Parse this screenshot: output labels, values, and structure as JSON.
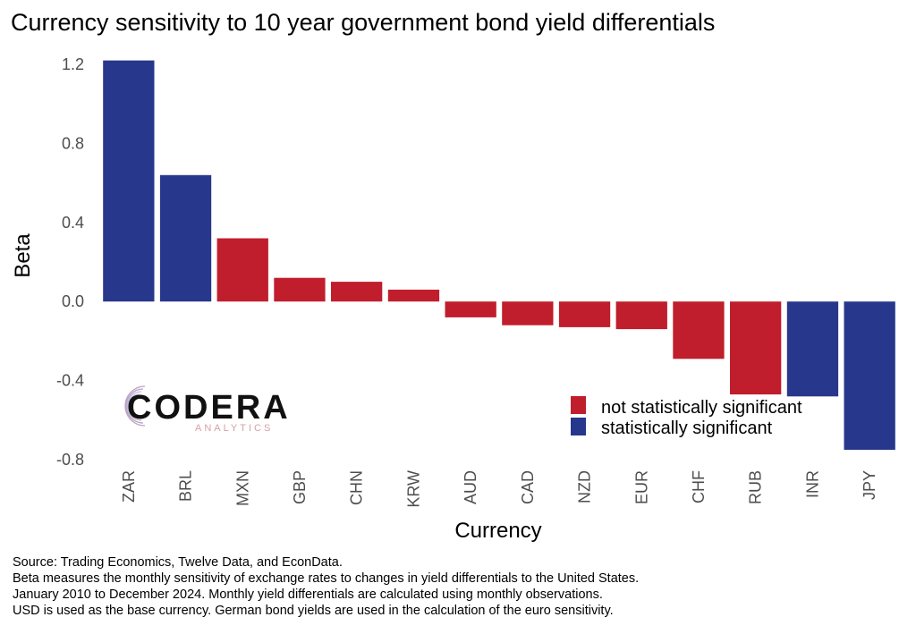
{
  "title": "Currency sensitivity to 10 year government bond yield differentials",
  "logo": {
    "word": "CODERA",
    "sub": "ANALYTICS"
  },
  "colors": {
    "significant": "#27378c",
    "not_significant": "#c01e2d",
    "tick": "#4d4d4d"
  },
  "notes": [
    "Source: Trading Economics, Twelve Data, and EconData.",
    "Beta measures the monthly sensitivity of exchange rates to changes in yield differentials to the United States.",
    "January 2010 to December 2024. Monthly yield differentials are calculated using monthly observations.",
    "USD is used as the base currency. German bond yields are used in the calculation of the euro sensitivity."
  ],
  "chart_data": {
    "type": "bar",
    "xlabel": "Currency",
    "ylabel": "Beta",
    "ylim": [
      -0.8,
      1.2
    ],
    "yticks": [
      -0.8,
      -0.4,
      0.0,
      0.4,
      0.8,
      1.2
    ],
    "ytick_labels": [
      "-0.8",
      "-0.4",
      "0.0",
      "0.4",
      "0.8",
      "1.2"
    ],
    "grid": false,
    "categories": [
      "ZAR",
      "BRL",
      "MXN",
      "GBP",
      "CHN",
      "KRW",
      "AUD",
      "CAD",
      "NZD",
      "EUR",
      "CHF",
      "RUB",
      "INR",
      "JPY"
    ],
    "values": [
      1.22,
      0.64,
      0.32,
      0.12,
      0.1,
      0.06,
      -0.08,
      -0.12,
      -0.13,
      -0.14,
      -0.29,
      -0.47,
      -0.48,
      -0.75
    ],
    "significant": [
      true,
      true,
      false,
      false,
      false,
      false,
      false,
      false,
      false,
      false,
      false,
      false,
      true,
      true
    ],
    "legend": {
      "position": "bottom-right",
      "entries": [
        {
          "label": "not statistically significant",
          "key": "not_significant"
        },
        {
          "label": "statistically significant",
          "key": "significant"
        }
      ]
    }
  }
}
